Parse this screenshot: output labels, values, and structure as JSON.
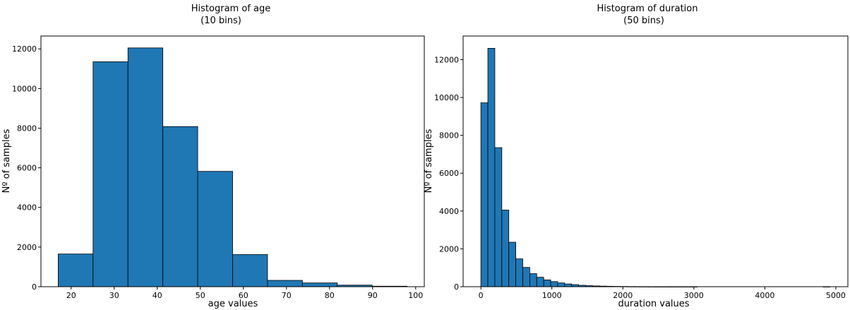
{
  "chart_data": [
    {
      "type": "bar",
      "title": "Histogram of age",
      "subtitle": "(10 bins)",
      "xlabel": "age values",
      "ylabel": "Nº of samples",
      "color": "#1f77b4",
      "edge_color": "#000000",
      "xlim": [
        13,
        102
      ],
      "ylim": [
        0,
        12650
      ],
      "x_ticks": [
        20,
        30,
        40,
        50,
        60,
        70,
        80,
        90,
        100
      ],
      "y_ticks": [
        0,
        2000,
        4000,
        6000,
        8000,
        10000,
        12000
      ],
      "grid": false,
      "bins": [
        {
          "x0": 17,
          "x1": 25.1,
          "value": 1650
        },
        {
          "x0": 25.1,
          "x1": 33.2,
          "value": 11350
        },
        {
          "x0": 33.2,
          "x1": 41.3,
          "value": 12050
        },
        {
          "x0": 41.3,
          "x1": 49.4,
          "value": 8080
        },
        {
          "x0": 49.4,
          "x1": 57.5,
          "value": 5820
        },
        {
          "x0": 57.5,
          "x1": 65.6,
          "value": 1620
        },
        {
          "x0": 65.6,
          "x1": 73.7,
          "value": 320
        },
        {
          "x0": 73.7,
          "x1": 81.8,
          "value": 190
        },
        {
          "x0": 81.8,
          "x1": 89.9,
          "value": 80
        },
        {
          "x0": 89.9,
          "x1": 98,
          "value": 25
        }
      ]
    },
    {
      "type": "bar",
      "title": "Histogram of duration",
      "subtitle": "(50 bins)",
      "xlabel": "duration values",
      "ylabel": "Nº of samples",
      "color": "#1f77b4",
      "edge_color": "#000000",
      "xlim": [
        -250,
        5170
      ],
      "ylim": [
        0,
        13250
      ],
      "x_ticks": [
        0,
        1000,
        2000,
        3000,
        4000,
        5000
      ],
      "y_ticks": [
        0,
        2000,
        4000,
        6000,
        8000,
        10000,
        12000
      ],
      "grid": false,
      "bin_start": 0,
      "bin_width": 98.36,
      "values": [
        9720,
        12600,
        7350,
        4050,
        2350,
        1470,
        1020,
        690,
        500,
        360,
        270,
        200,
        145,
        110,
        75,
        55,
        40,
        30,
        22,
        16,
        12,
        8,
        6,
        4,
        3,
        2,
        2,
        1,
        1,
        1,
        1,
        0,
        0,
        0,
        0,
        0,
        0,
        0,
        0,
        0,
        0,
        0,
        0,
        0,
        0,
        0,
        0,
        0,
        0,
        1
      ]
    }
  ]
}
